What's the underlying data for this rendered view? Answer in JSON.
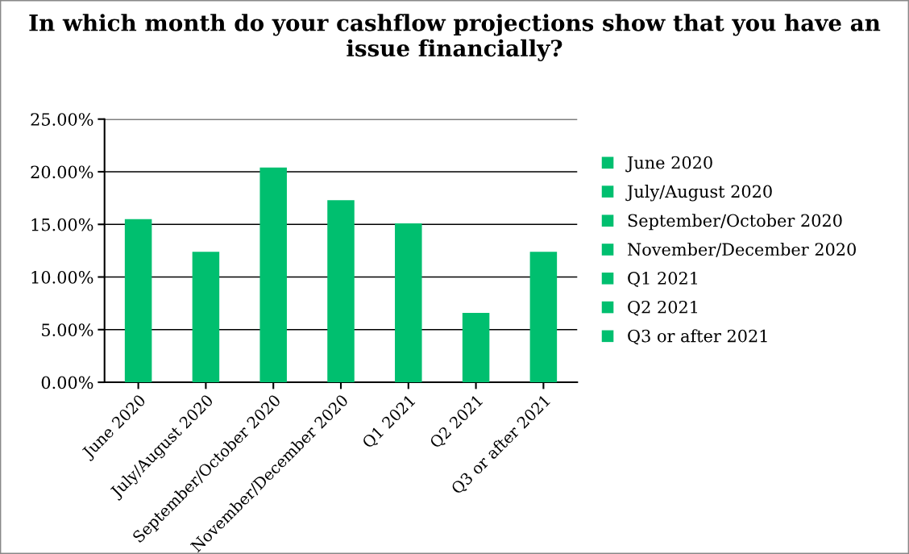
{
  "chart_data": {
    "type": "bar",
    "title": "In which month do your cashflow projections show that you have an issue financially?",
    "categories": [
      "June 2020",
      "July/August 2020",
      "September/October 2020",
      "November/December 2020",
      "Q1 2021",
      "Q2 2021",
      "Q3 or after 2021"
    ],
    "series": [
      {
        "name": "June 2020",
        "color": "#00bf6f",
        "values": [
          15.5,
          null,
          null,
          null,
          null,
          null,
          null
        ]
      },
      {
        "name": "July/August 2020",
        "color": "#00bf6f",
        "values": [
          null,
          12.4,
          null,
          null,
          null,
          null,
          null
        ]
      },
      {
        "name": "September/October 2020",
        "color": "#00bf6f",
        "values": [
          null,
          null,
          20.4,
          null,
          null,
          null,
          null
        ]
      },
      {
        "name": "November/December 2020",
        "color": "#00bf6f",
        "values": [
          null,
          null,
          null,
          17.3,
          null,
          null,
          null
        ]
      },
      {
        "name": "Q1 2021",
        "color": "#00bf6f",
        "values": [
          null,
          null,
          null,
          null,
          15.1,
          null,
          null
        ]
      },
      {
        "name": "Q2 2021",
        "color": "#00bf6f",
        "values": [
          null,
          null,
          null,
          null,
          null,
          6.6,
          null
        ]
      },
      {
        "name": "Q3 or after 2021",
        "color": "#00bf6f",
        "values": [
          null,
          null,
          null,
          null,
          null,
          null,
          12.4
        ]
      }
    ],
    "ylim": [
      0,
      25
    ],
    "yticks": [
      {
        "value": 0,
        "label": "0.00%"
      },
      {
        "value": 5,
        "label": "5.00%"
      },
      {
        "value": 10,
        "label": "10.00%"
      },
      {
        "value": 15,
        "label": "15.00%"
      },
      {
        "value": 20,
        "label": "20.00%"
      },
      {
        "value": 25,
        "label": "25.00%"
      }
    ],
    "grid": "y",
    "legend": "right"
  }
}
